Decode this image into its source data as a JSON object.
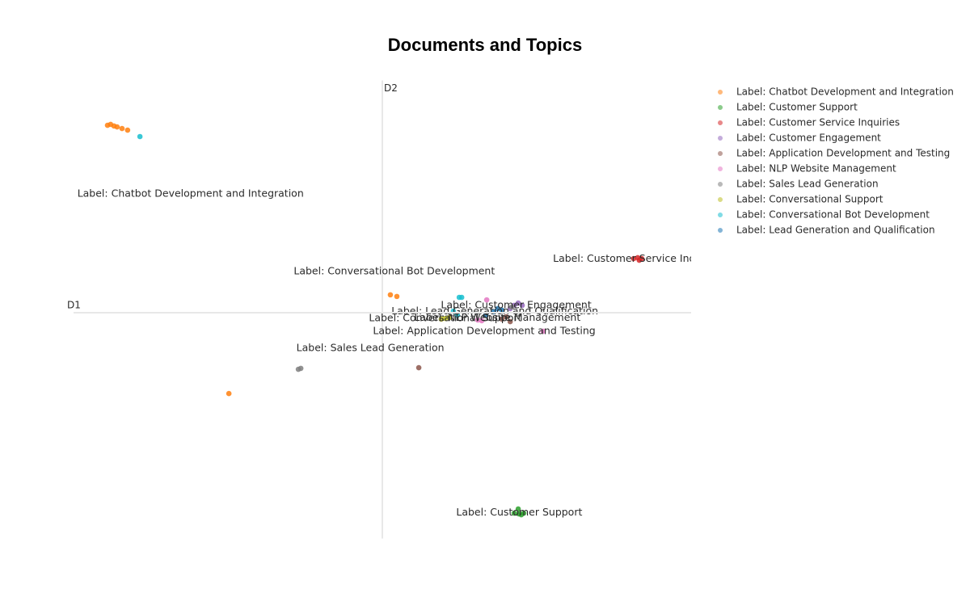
{
  "chart_data": {
    "type": "scatter",
    "title": "Documents and Topics",
    "x_label": "D1",
    "y_label": "D2",
    "xlim": [
      -10,
      10
    ],
    "ylim": [
      -10,
      10
    ],
    "series": [
      {
        "name": "Label: Chatbot Development and Integration",
        "color": "#ff7f0e",
        "x": [
          -8.9,
          -8.8,
          -8.69,
          -8.59,
          -8.43,
          -8.25,
          0.26,
          0.47,
          -4.97
        ],
        "values": [
          8.18,
          8.22,
          8.15,
          8.11,
          8.04,
          7.97,
          0.78,
          0.71,
          -3.53
        ]
      },
      {
        "name": "Label: Customer Support",
        "color": "#2ca02c",
        "x": [
          4.27,
          4.42,
          4.58,
          4.4,
          4.5
        ],
        "values": [
          -8.75,
          -8.78,
          -8.75,
          -8.57,
          -8.82
        ]
      },
      {
        "name": "Label: Customer Service Inquiries",
        "color": "#d62728",
        "x": [
          8.14,
          8.27,
          8.4,
          8.32
        ],
        "values": [
          2.36,
          2.4,
          2.36,
          2.29
        ]
      },
      {
        "name": "Label: Customer Engagement",
        "color": "#9467bd",
        "x": [
          4.27,
          4.4,
          4.53,
          4.14
        ],
        "values": [
          0.32,
          0.42,
          0.32,
          0.18
        ]
      },
      {
        "name": "Label: Application Development and Testing",
        "color": "#8c564b",
        "x": [
          3.87,
          4.01,
          4.14,
          1.18
        ],
        "values": [
          -0.28,
          -0.18,
          -0.39,
          -2.4
        ]
      },
      {
        "name": "Label: NLP Website Management",
        "color": "#e377c2",
        "x": [
          3.09,
          3.22,
          3.38,
          5.21
        ],
        "values": [
          -0.32,
          -0.35,
          0.56,
          -0.81
        ]
      },
      {
        "name": "Label: Sales Lead Generation",
        "color": "#7f7f7f",
        "x": [
          -2.72,
          -2.64,
          4.19
        ],
        "values": [
          -2.47,
          -2.43,
          0.25
        ]
      },
      {
        "name": "Label: Conversational Support",
        "color": "#bcbd22",
        "x": [
          1.91,
          2.04,
          2.17
        ],
        "values": [
          -0.28,
          -0.25,
          -0.21
        ]
      },
      {
        "name": "Label: Conversational Bot Development",
        "color": "#17becf",
        "x": [
          2.49,
          2.57,
          -7.85,
          2.43,
          2.3
        ],
        "values": [
          0.67,
          0.67,
          7.69,
          -0.11,
          0.07
        ]
      },
      {
        "name": "Label: Lead Generation and Qualification",
        "color": "#1f77b4",
        "x": [
          3.35,
          3.61,
          3.74,
          3.87
        ],
        "values": [
          -0.11,
          0.04,
          0.18,
          0.11
        ]
      }
    ]
  }
}
